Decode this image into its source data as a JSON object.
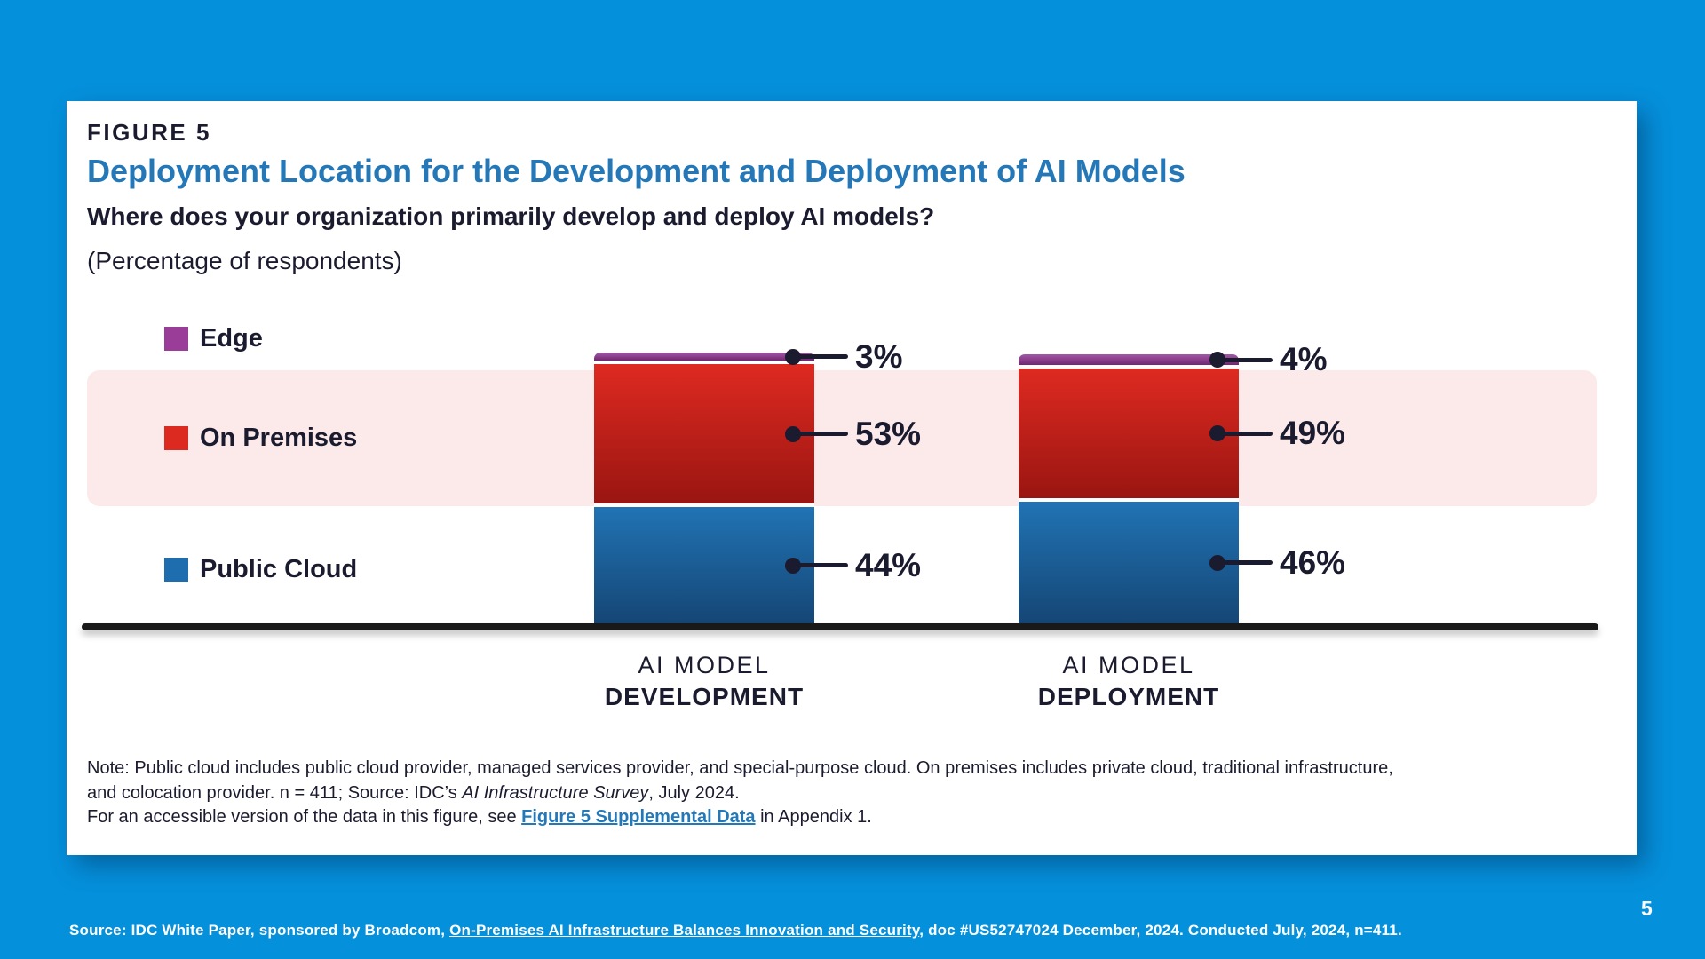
{
  "card": {
    "figure_label": "FIGURE 5",
    "title": "Deployment Location for the Development and Deployment of AI Models",
    "question": "Where does your organization primarily develop and deploy AI models?",
    "subtitle": "(Percentage of respondents)"
  },
  "chart_data": {
    "type": "bar",
    "stacked": true,
    "unit": "percent of respondents",
    "categories": [
      {
        "label_line1": "AI MODEL",
        "label_line2": "DEVELOPMENT"
      },
      {
        "label_line1": "AI MODEL",
        "label_line2": "DEPLOYMENT"
      }
    ],
    "series": [
      {
        "name": "Edge",
        "color": "#9A3D98",
        "values": [
          3,
          4
        ]
      },
      {
        "name": "On Premises",
        "color": "#DC2A21",
        "values": [
          53,
          49
        ]
      },
      {
        "name": "Public Cloud",
        "color": "#1E6DAF",
        "values": [
          44,
          46
        ]
      }
    ],
    "value_label_format": "{value}%",
    "legend_position": "left",
    "highlight_band": {
      "series": "On Premises",
      "color": "#FCE9E9"
    },
    "ylim": [
      0,
      100
    ],
    "grid": false
  },
  "note": {
    "line1": "Note: Public cloud includes public cloud provider, managed services provider, and special-purpose cloud. On premises includes private cloud, traditional infrastructure,",
    "line2_pre": "and colocation provider. n = 411; Source: IDC’s ",
    "line2_italic": "AI Infrastructure Survey",
    "line2_post": ", July 2024.",
    "line3_pre": "For an accessible version of the data in this figure, see ",
    "line3_link": "Figure 5 Supplemental Data",
    "line3_post": " in Appendix 1."
  },
  "footer": {
    "source_pre": "Source: IDC White Paper, sponsored by Broadcom, ",
    "source_link": "On-Premises AI Infrastructure Balances Innovation and Security",
    "source_post": ", doc #US52747024 December, 2024. Conducted July, 2024, n=411.",
    "page_number": "5"
  },
  "colors": {
    "background": "#0590DC",
    "card": "#FFFFFF",
    "text": "#1B1B2F",
    "accent_blue": "#2478B8",
    "baseline": "#191919"
  }
}
